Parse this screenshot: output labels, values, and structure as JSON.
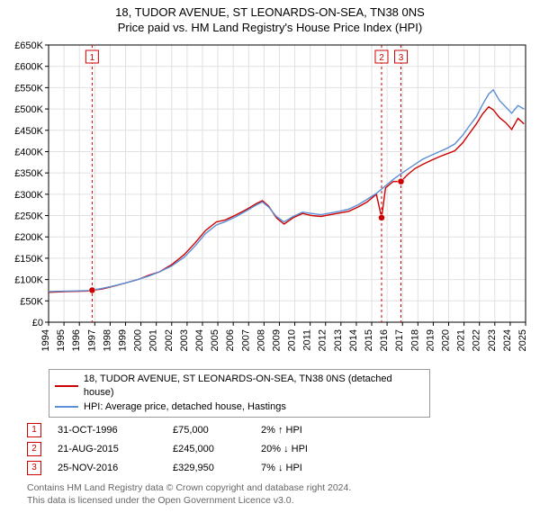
{
  "title_line1": "18, TUDOR AVENUE, ST LEONARDS-ON-SEA, TN38 0NS",
  "title_line2": "Price paid vs. HM Land Registry's House Price Index (HPI)",
  "chart": {
    "type": "line",
    "background_color": "#ffffff",
    "plot_bg": "#ffffff",
    "grid_color": "#e0e0e0",
    "axis_color": "#000000",
    "x_min_year": 1994,
    "x_max_year": 2025,
    "x_tick_years": [
      1994,
      1995,
      1996,
      1997,
      1998,
      1999,
      2000,
      2001,
      2002,
      2003,
      2004,
      2005,
      2006,
      2007,
      2008,
      2009,
      2010,
      2011,
      2012,
      2013,
      2014,
      2015,
      2016,
      2017,
      2018,
      2019,
      2020,
      2021,
      2022,
      2023,
      2024,
      2025
    ],
    "y_min": 0,
    "y_max": 650000,
    "y_tick_step": 50000,
    "y_tick_labels": [
      "£0",
      "£50K",
      "£100K",
      "£150K",
      "£200K",
      "£250K",
      "£300K",
      "£350K",
      "£400K",
      "£450K",
      "£500K",
      "£550K",
      "£600K",
      "£650K"
    ],
    "line_width": 1.4,
    "series": [
      {
        "name": "property",
        "color": "#cc0000",
        "points": [
          [
            1994.0,
            70000
          ],
          [
            1995.2,
            72000
          ],
          [
            1996.5,
            73000
          ],
          [
            1996.83,
            75000
          ],
          [
            1997.5,
            78000
          ],
          [
            1998.3,
            85000
          ],
          [
            1999.0,
            92000
          ],
          [
            1999.8,
            100000
          ],
          [
            2000.5,
            110000
          ],
          [
            2001.2,
            118000
          ],
          [
            2002.0,
            135000
          ],
          [
            2002.8,
            158000
          ],
          [
            2003.5,
            185000
          ],
          [
            2004.2,
            215000
          ],
          [
            2004.9,
            235000
          ],
          [
            2005.5,
            240000
          ],
          [
            2006.2,
            252000
          ],
          [
            2006.9,
            265000
          ],
          [
            2007.5,
            278000
          ],
          [
            2007.9,
            285000
          ],
          [
            2008.3,
            272000
          ],
          [
            2008.8,
            245000
          ],
          [
            2009.3,
            230000
          ],
          [
            2009.9,
            245000
          ],
          [
            2010.5,
            255000
          ],
          [
            2011.1,
            250000
          ],
          [
            2011.7,
            248000
          ],
          [
            2012.3,
            252000
          ],
          [
            2012.9,
            256000
          ],
          [
            2013.5,
            260000
          ],
          [
            2014.1,
            270000
          ],
          [
            2014.7,
            282000
          ],
          [
            2015.3,
            300000
          ],
          [
            2015.64,
            245000
          ],
          [
            2015.9,
            315000
          ],
          [
            2016.4,
            330000
          ],
          [
            2016.9,
            329950
          ],
          [
            2017.3,
            345000
          ],
          [
            2017.8,
            360000
          ],
          [
            2018.3,
            370000
          ],
          [
            2018.9,
            380000
          ],
          [
            2019.4,
            388000
          ],
          [
            2019.9,
            395000
          ],
          [
            2020.4,
            402000
          ],
          [
            2020.9,
            420000
          ],
          [
            2021.3,
            440000
          ],
          [
            2021.8,
            465000
          ],
          [
            2022.2,
            488000
          ],
          [
            2022.6,
            505000
          ],
          [
            2022.9,
            498000
          ],
          [
            2023.3,
            480000
          ],
          [
            2023.7,
            468000
          ],
          [
            2024.1,
            452000
          ],
          [
            2024.5,
            478000
          ],
          [
            2024.9,
            465000
          ]
        ]
      },
      {
        "name": "hpi",
        "color": "#5b8fd6",
        "points": [
          [
            1994.0,
            72000
          ],
          [
            1995.2,
            73000
          ],
          [
            1996.5,
            74000
          ],
          [
            1997.3,
            78000
          ],
          [
            1998.1,
            84000
          ],
          [
            1999.0,
            92000
          ],
          [
            1999.8,
            100000
          ],
          [
            2000.5,
            108000
          ],
          [
            2001.2,
            118000
          ],
          [
            2002.0,
            132000
          ],
          [
            2002.8,
            152000
          ],
          [
            2003.5,
            178000
          ],
          [
            2004.2,
            208000
          ],
          [
            2004.9,
            228000
          ],
          [
            2005.5,
            236000
          ],
          [
            2006.2,
            248000
          ],
          [
            2006.9,
            262000
          ],
          [
            2007.5,
            275000
          ],
          [
            2007.9,
            282000
          ],
          [
            2008.3,
            270000
          ],
          [
            2008.8,
            248000
          ],
          [
            2009.3,
            235000
          ],
          [
            2009.9,
            248000
          ],
          [
            2010.5,
            258000
          ],
          [
            2011.1,
            255000
          ],
          [
            2011.7,
            252000
          ],
          [
            2012.3,
            256000
          ],
          [
            2012.9,
            260000
          ],
          [
            2013.5,
            265000
          ],
          [
            2014.1,
            275000
          ],
          [
            2014.7,
            288000
          ],
          [
            2015.3,
            302000
          ],
          [
            2015.9,
            320000
          ],
          [
            2016.4,
            335000
          ],
          [
            2016.9,
            348000
          ],
          [
            2017.3,
            358000
          ],
          [
            2017.8,
            370000
          ],
          [
            2018.3,
            382000
          ],
          [
            2018.9,
            392000
          ],
          [
            2019.4,
            400000
          ],
          [
            2019.9,
            408000
          ],
          [
            2020.4,
            418000
          ],
          [
            2020.9,
            438000
          ],
          [
            2021.3,
            458000
          ],
          [
            2021.8,
            482000
          ],
          [
            2022.2,
            510000
          ],
          [
            2022.6,
            535000
          ],
          [
            2022.9,
            545000
          ],
          [
            2023.3,
            520000
          ],
          [
            2023.7,
            505000
          ],
          [
            2024.1,
            490000
          ],
          [
            2024.5,
            508000
          ],
          [
            2024.9,
            500000
          ]
        ]
      }
    ],
    "event_markers": [
      {
        "n": "1",
        "year": 1996.83,
        "price": 75000,
        "color": "#cc0000"
      },
      {
        "n": "2",
        "year": 2015.64,
        "price": 245000,
        "color": "#cc0000"
      },
      {
        "n": "3",
        "year": 2016.9,
        "price": 329950,
        "color": "#cc0000"
      }
    ],
    "marker_line_color": "#cc0000",
    "marker_line_dash": "3,3",
    "marker_box_border": "#cc0000",
    "marker_box_fill": "#ffffff",
    "marker_label_fontsize": 10
  },
  "legend": {
    "border_color": "#999999",
    "items": [
      {
        "color": "#cc0000",
        "label": "18, TUDOR AVENUE, ST LEONARDS-ON-SEA, TN38 0NS (detached house)"
      },
      {
        "color": "#5b8fd6",
        "label": "HPI: Average price, detached house, Hastings"
      }
    ]
  },
  "events_table": [
    {
      "n": "1",
      "color": "#cc0000",
      "date": "31-OCT-1996",
      "price": "£75,000",
      "diff": "2% ↑ HPI"
    },
    {
      "n": "2",
      "color": "#cc0000",
      "date": "21-AUG-2015",
      "price": "£245,000",
      "diff": "20% ↓ HPI"
    },
    {
      "n": "3",
      "color": "#cc0000",
      "date": "25-NOV-2016",
      "price": "£329,950",
      "diff": "7% ↓ HPI"
    }
  ],
  "footer_line1": "Contains HM Land Registry data © Crown copyright and database right 2024.",
  "footer_line2": "This data is licensed under the Open Government Licence v3.0."
}
